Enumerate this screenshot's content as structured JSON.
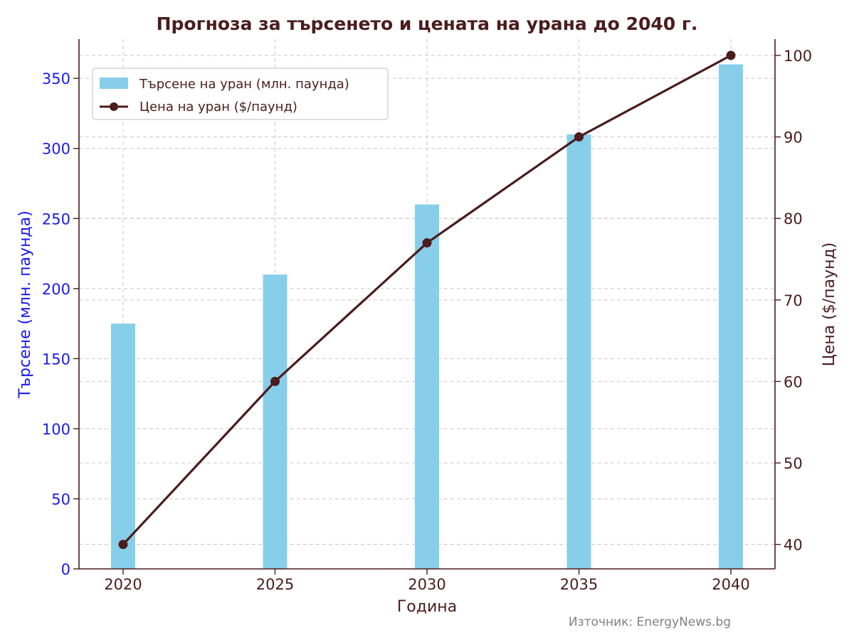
{
  "chart_data": {
    "type": "bar+line",
    "title": "Прогноза за търсенето и цената на урана до 2040 г.",
    "xlabel": "Година",
    "ylabel_left": "Търсене (млн. паунда)",
    "ylabel_right": "Цена ($/паунд)",
    "categories": [
      "2020",
      "2025",
      "2030",
      "2035",
      "2040"
    ],
    "left_ticks": [
      0,
      50,
      100,
      150,
      200,
      250,
      300,
      350
    ],
    "right_ticks": [
      40,
      50,
      60,
      70,
      80,
      90,
      100
    ],
    "ylim_left": [
      0,
      378
    ],
    "ylim_right": [
      37,
      102
    ],
    "grid": true,
    "legend_position": "top-left",
    "series": [
      {
        "name": "Търсене на уран (млн. паунда)",
        "type": "bar",
        "axis": "left",
        "color": "#87ceeb",
        "values": [
          175,
          210,
          260,
          310,
          360
        ]
      },
      {
        "name": "Цена на уран ($/паунд)",
        "type": "line",
        "axis": "right",
        "color": "#4a1c1c",
        "values": [
          40,
          60,
          77,
          90,
          100
        ]
      }
    ],
    "colors": {
      "left_axis": "#1a1aee",
      "right_axis": "#4a1c1c",
      "title": "#4a1c1c",
      "grid": "#c8c8c8",
      "source": "#808080"
    }
  },
  "source": "Източник: EnergyNews.bg"
}
